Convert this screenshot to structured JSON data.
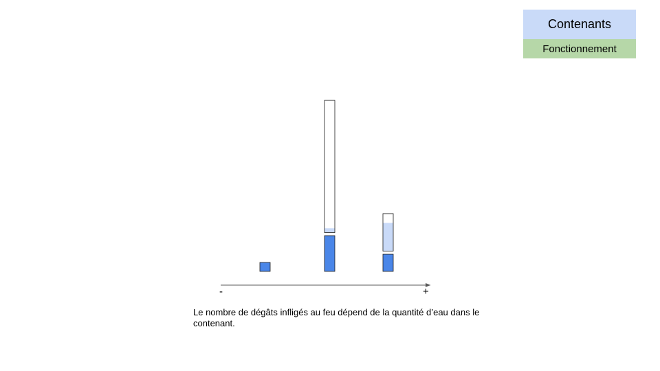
{
  "tags": {
    "title": "Contenants",
    "subtitle": "Fonctionnement"
  },
  "colors": {
    "title_bg": "#c9daf8",
    "subtitle_bg": "#b6d7a8",
    "damage_fill": "#4a86e8",
    "water_fill": "#c9daf8",
    "outline": "#1a1a1a",
    "axis": "#595959"
  },
  "axis": {
    "min_label": "-",
    "max_label": "+"
  },
  "chart_data": {
    "type": "bar",
    "categories": [
      "",
      "",
      ""
    ],
    "series": [
      {
        "values": [
          0.25,
          1.0,
          0.48
        ]
      }
    ],
    "containers": [
      {
        "capacity": 0,
        "water_level": 0
      },
      {
        "capacity": 3.7,
        "water_level": 0.12
      },
      {
        "capacity": 1.05,
        "water_level": 0.79
      }
    ],
    "title": "",
    "xlabel": "",
    "ylabel": "",
    "ylim": [
      0,
      1
    ]
  },
  "caption": "Le nombre de dégâts infligés au feu dépend de la quantité d’eau dans le contenant."
}
